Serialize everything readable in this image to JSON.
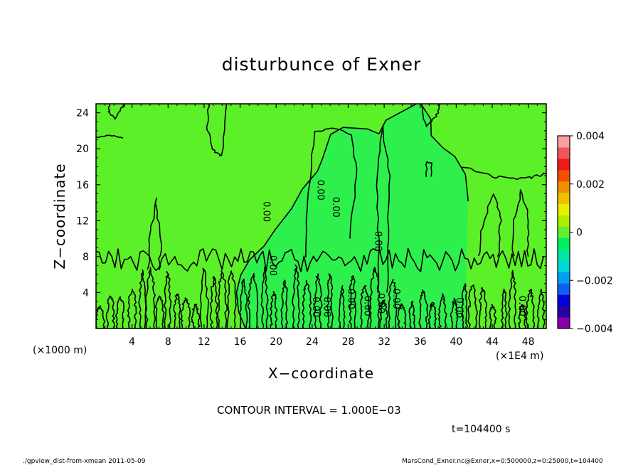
{
  "chart_data": {
    "type": "heatmap",
    "title": "disturbunce of Exner",
    "xlabel": "X−coordinate",
    "ylabel": "Z−coordinate",
    "x_unit_label": "(×1000 m)",
    "x_factor_label": "(×1E4 m)",
    "x_range": [
      0,
      50
    ],
    "y_range": [
      0,
      25
    ],
    "x_ticks": [
      4,
      8,
      12,
      16,
      20,
      24,
      28,
      32,
      36,
      40,
      44,
      48
    ],
    "y_ticks": [
      4,
      8,
      12,
      16,
      20,
      24
    ],
    "contour_interval_text": "CONTOUR INTERVAL = 1.000E−03",
    "time_text": "t=104400 s",
    "contour_labels": [
      "0.00",
      "0.00",
      "0.00",
      "0.00",
      "0.00",
      "0.00",
      "0.00",
      "0.00",
      "0.00",
      "0.00",
      "0.00",
      "0.00",
      "0.00"
    ],
    "colorbar": {
      "range": [
        -0.004,
        0.004
      ],
      "ticks": [
        {
          "value": 0.004,
          "label": "0.004"
        },
        {
          "value": 0.002,
          "label": "0.002"
        },
        {
          "value": 0,
          "label": "0"
        },
        {
          "value": -0.002,
          "label": "−0.002"
        },
        {
          "value": -0.004,
          "label": "−0.004"
        }
      ],
      "colors": [
        "#8a00a8",
        "#2a00a0",
        "#0000d8",
        "#1060f0",
        "#00a0f0",
        "#00d8d8",
        "#00e8a0",
        "#00f060",
        "#60f030",
        "#a8f000",
        "#e8f000",
        "#f0c000",
        "#f09000",
        "#f05000",
        "#f01818",
        "#f05858",
        "#f8a0a0"
      ]
    },
    "background_value_color": "#5cf028",
    "negative_patch_color": "#2ef04c"
  },
  "footer": {
    "left": "./gpview_dist-from-xmean   2011-05-09",
    "right": "MarsCond_Exner.nc@Exner,x=0:500000,z=0:25000,t=104400"
  }
}
